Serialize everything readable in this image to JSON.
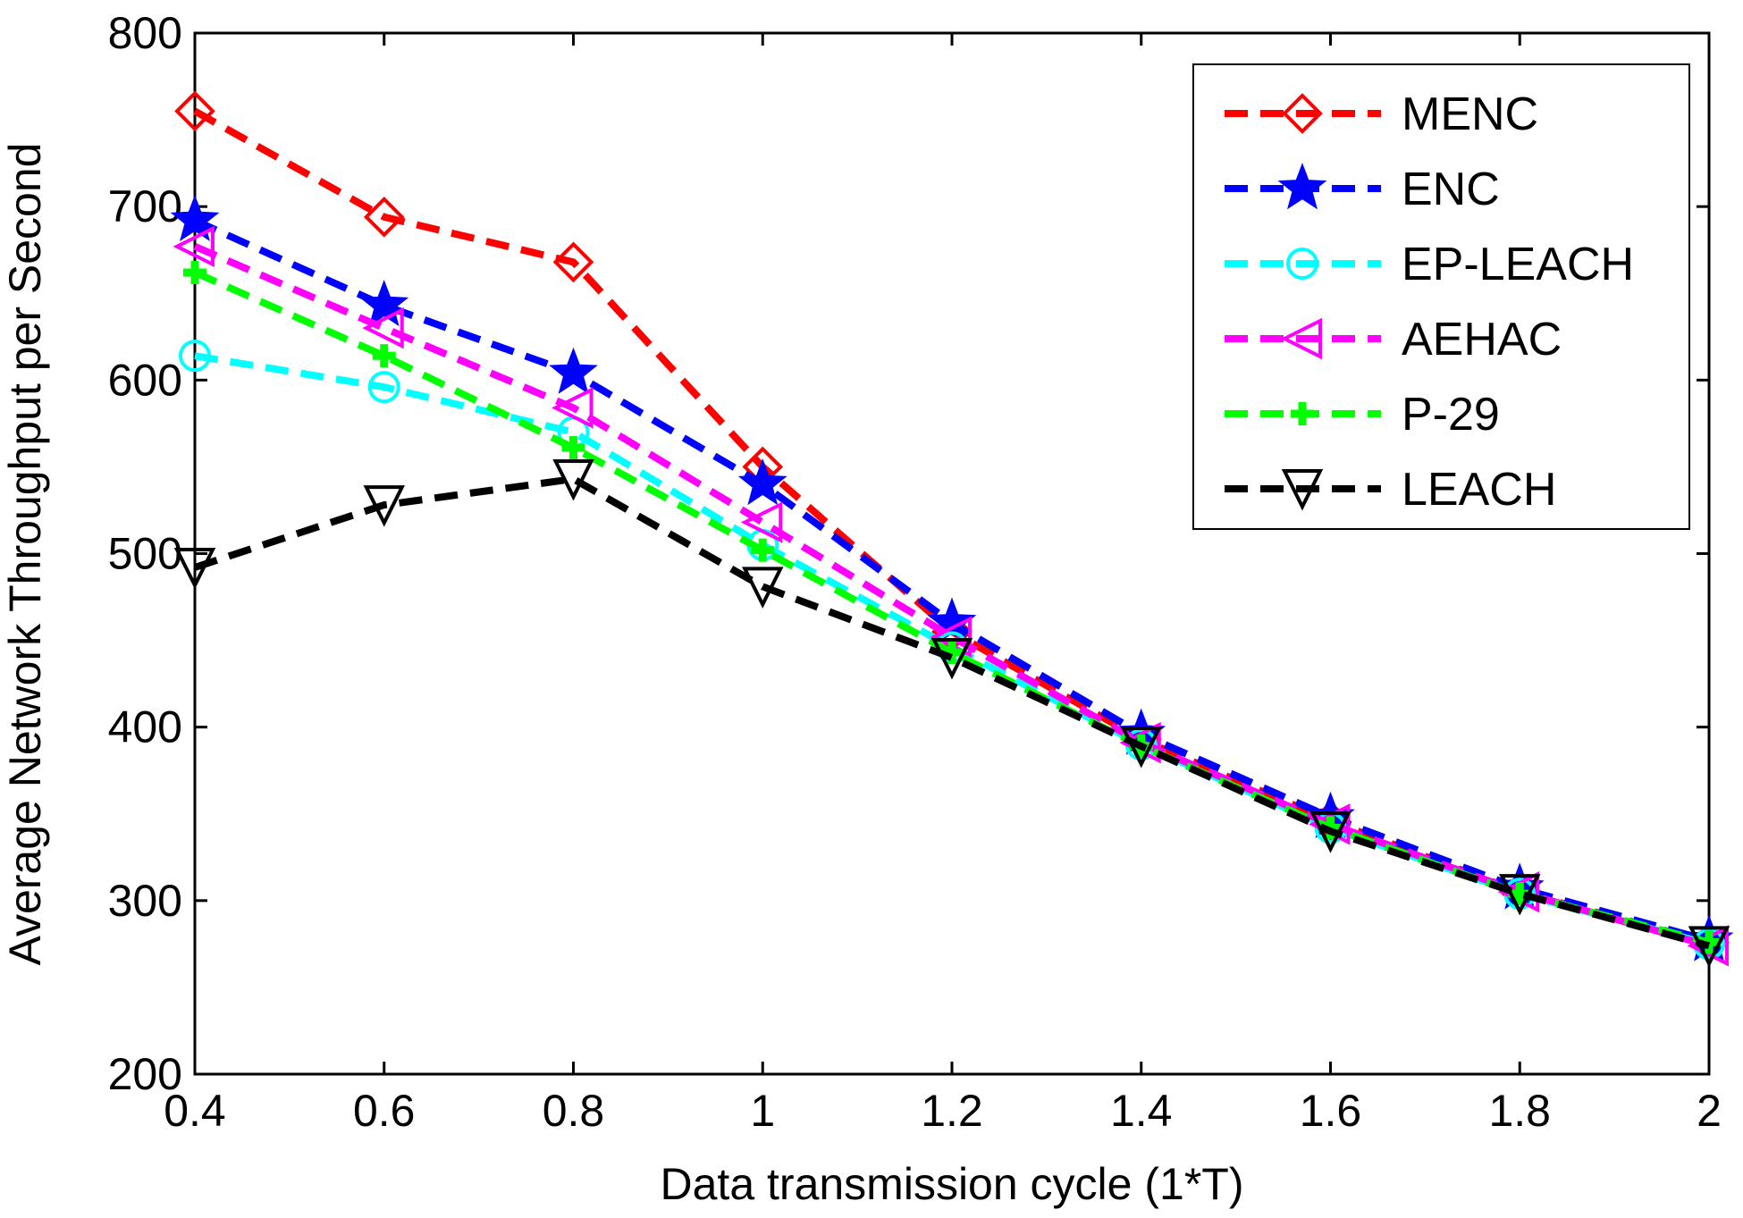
{
  "chart_data": {
    "type": "line",
    "title": "",
    "xlabel": "Data transmission cycle (1*T)",
    "ylabel": "Average Network Throughput per Second",
    "x": [
      0.4,
      0.6,
      0.8,
      1.0,
      1.2,
      1.4,
      1.6,
      1.8,
      2.0
    ],
    "xlim": [
      0.4,
      2.0
    ],
    "ylim": [
      200,
      800
    ],
    "xticks": [
      0.4,
      0.6,
      0.8,
      1.0,
      1.2,
      1.4,
      1.6,
      1.8,
      2.0
    ],
    "xtick_labels": [
      "0.4",
      "0.6",
      "0.8",
      "1",
      "1.2",
      "1.4",
      "1.6",
      "1.8",
      "2"
    ],
    "yticks": [
      200,
      300,
      400,
      500,
      600,
      700,
      800
    ],
    "ytick_labels": [
      "200",
      "300",
      "400",
      "500",
      "600",
      "700",
      "800"
    ],
    "grid": false,
    "legend_position": "top-right",
    "series": [
      {
        "name": "MENC",
        "color": "#ff0000",
        "marker": "diamond",
        "values": [
          755,
          694,
          668,
          550,
          455,
          393,
          346,
          305,
          276
        ]
      },
      {
        "name": "ENC",
        "color": "#0000ff",
        "marker": "star",
        "values": [
          692,
          643,
          604,
          540,
          460,
          396,
          348,
          307,
          277
        ]
      },
      {
        "name": "EP-LEACH",
        "color": "#00ffff",
        "marker": "circle",
        "values": [
          614,
          596,
          570,
          505,
          446,
          390,
          342,
          304,
          275
        ]
      },
      {
        "name": "AEHAC",
        "color": "#ff00ff",
        "marker": "triangle-left",
        "values": [
          677,
          630,
          584,
          518,
          452,
          391,
          344,
          305,
          274
        ]
      },
      {
        "name": "P-29",
        "color": "#00ff00",
        "marker": "plus",
        "values": [
          662,
          614,
          561,
          502,
          443,
          389,
          342,
          304,
          276
        ]
      },
      {
        "name": "LEACH",
        "color": "#000000",
        "marker": "triangle-down",
        "values": [
          492,
          528,
          543,
          481,
          440,
          389,
          340,
          304,
          274
        ]
      }
    ]
  }
}
